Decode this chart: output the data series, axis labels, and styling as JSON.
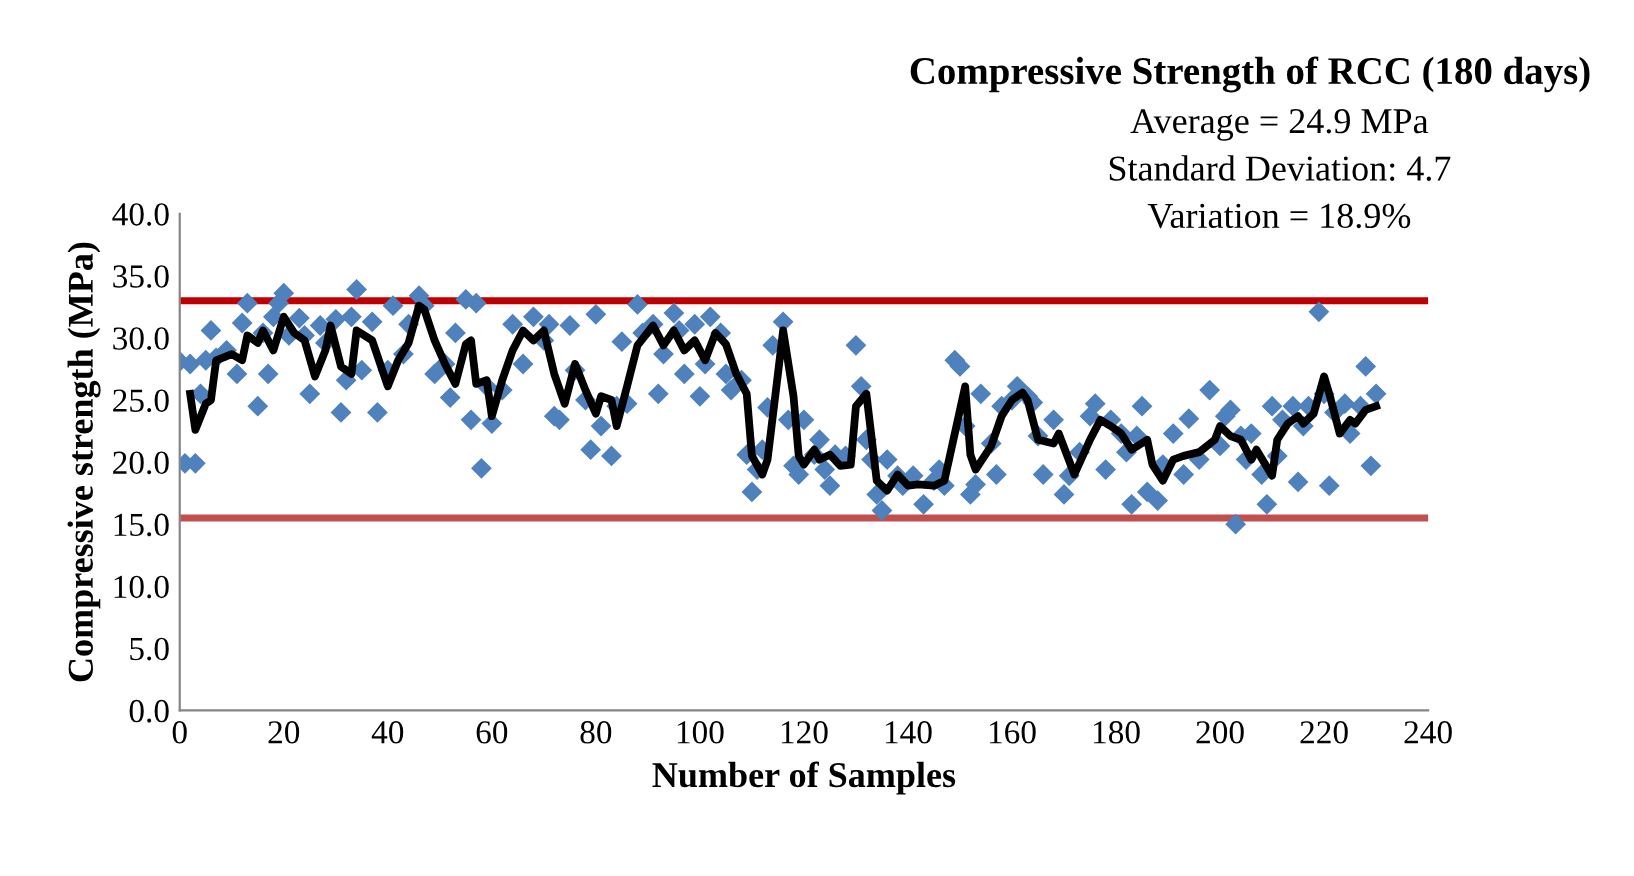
{
  "chart_data": {
    "type": "scatter",
    "title": "Compressive Strength of RCC (180 days)",
    "annotations": [
      "Average = 24.9 MPa",
      "Standard Deviation: 4.7",
      "Variation = 18.9%"
    ],
    "xlabel": "Number of Samples",
    "ylabel": "Compressive strength (MPa)",
    "xlim": [
      0,
      240
    ],
    "xticks": [
      0,
      20,
      40,
      60,
      80,
      100,
      120,
      140,
      160,
      180,
      200,
      220,
      240
    ],
    "ylim": [
      0,
      40
    ],
    "yticks": [
      {
        "value": 0,
        "label": "0.0"
      },
      {
        "value": 5,
        "label": "5.0"
      },
      {
        "value": 10,
        "label": "10.0"
      },
      {
        "value": 15,
        "label": "15.0"
      },
      {
        "value": 20,
        "label": "20.0"
      },
      {
        "value": 25,
        "label": "25.0"
      },
      {
        "value": 30,
        "label": "30.0"
      },
      {
        "value": 35,
        "label": "35.0"
      },
      {
        "value": 40,
        "label": "40.0"
      }
    ],
    "grid": false,
    "ref_lines": [
      {
        "axis": "y",
        "value": 33.0,
        "label": null,
        "color": "#c00000",
        "line_style": "solid"
      },
      {
        "axis": "y",
        "value": 15.5,
        "label": null,
        "color": "#c0504d",
        "line_style": "solid"
      }
    ],
    "series": [
      {
        "color": "#4f81bd",
        "marker": "diamond",
        "x": [
          0,
          1,
          2,
          3,
          4,
          5,
          6,
          7,
          9,
          11,
          12,
          13,
          15,
          16,
          17,
          18,
          19,
          20,
          21,
          23,
          24,
          25,
          27,
          28,
          30,
          31,
          32,
          33,
          34,
          35,
          37,
          38,
          40,
          41,
          43,
          44,
          46,
          47,
          49,
          51,
          52,
          53,
          55,
          56,
          57,
          58,
          59,
          60,
          62,
          64,
          66,
          68,
          70,
          71,
          72,
          73,
          75,
          76,
          78,
          79,
          80,
          81,
          83,
          84,
          85,
          86,
          88,
          89,
          91,
          92,
          93,
          95,
          96,
          97,
          99,
          100,
          101,
          102,
          104,
          105,
          106,
          108,
          109,
          110,
          111,
          112,
          113,
          114,
          116,
          117,
          118,
          119,
          120,
          122,
          123,
          124,
          125,
          126,
          128,
          130,
          131,
          132,
          133,
          134,
          135,
          136,
          138,
          139,
          141,
          143,
          145,
          146,
          147,
          149,
          150,
          151,
          152,
          153,
          154,
          156,
          157,
          158,
          160,
          161,
          163,
          164,
          165,
          166,
          168,
          170,
          171,
          173,
          175,
          176,
          178,
          179,
          181,
          182,
          183,
          184,
          185,
          186,
          188,
          189,
          191,
          193,
          194,
          196,
          198,
          200,
          201,
          202,
          203,
          204,
          205,
          206,
          208,
          209,
          210,
          211,
          212,
          214,
          215,
          216,
          217,
          219,
          220,
          221,
          222,
          224,
          225,
          227,
          228,
          229,
          230
        ],
        "values": [
          28.1,
          19.9,
          27.9,
          19.9,
          25.5,
          28.2,
          30.6,
          28.4,
          29.0,
          27.1,
          31.2,
          32.8,
          24.5,
          30.4,
          27.1,
          31.7,
          32.8,
          33.6,
          30.2,
          31.6,
          30.2,
          25.5,
          31.0,
          29.6,
          31.5,
          24.0,
          26.6,
          31.7,
          33.9,
          27.4,
          31.3,
          24.0,
          27.4,
          32.6,
          28.7,
          31.1,
          33.4,
          32.6,
          27.1,
          27.9,
          25.2,
          30.4,
          33.1,
          23.4,
          32.8,
          19.5,
          26.1,
          23.1,
          25.8,
          31.1,
          27.9,
          31.7,
          29.8,
          31.1,
          23.7,
          23.4,
          31.0,
          27.4,
          25.0,
          21.0,
          31.9,
          22.9,
          20.5,
          24.5,
          29.7,
          24.7,
          32.7,
          30.4,
          31.1,
          25.5,
          28.7,
          32.0,
          30.6,
          27.1,
          31.1,
          25.3,
          27.9,
          31.7,
          30.4,
          27.1,
          25.8,
          26.6,
          20.6,
          17.6,
          19.4,
          21.0,
          24.4,
          29.4,
          31.3,
          23.4,
          19.7,
          19.0,
          23.4,
          20.6,
          21.8,
          19.4,
          18.1,
          20.6,
          20.5,
          29.4,
          26.1,
          21.8,
          20.2,
          17.4,
          16.1,
          20.2,
          18.9,
          18.1,
          18.9,
          16.6,
          18.5,
          19.4,
          18.1,
          28.2,
          27.7,
          22.9,
          17.4,
          18.2,
          25.5,
          21.5,
          19.0,
          24.5,
          25.0,
          26.1,
          25.3,
          24.8,
          22.1,
          19.0,
          23.4,
          17.4,
          18.9,
          20.8,
          23.7,
          24.7,
          19.4,
          23.4,
          22.3,
          20.8,
          16.6,
          22.1,
          24.5,
          17.6,
          16.9,
          19.8,
          22.3,
          19.0,
          23.5,
          20.2,
          25.8,
          21.3,
          23.7,
          24.2,
          15.0,
          22.1,
          20.2,
          22.3,
          19.0,
          16.6,
          24.5,
          20.5,
          23.4,
          24.5,
          18.4,
          22.9,
          24.5,
          32.1,
          25.5,
          18.1,
          24.0,
          24.7,
          22.3,
          24.5,
          27.7,
          19.7,
          25.5
        ]
      },
      {
        "type": "line",
        "color": "#000000",
        "marker": "none",
        "line_style": "solid",
        "x": [
          2,
          3,
          5,
          6,
          7,
          10,
          12,
          13,
          15,
          16,
          18,
          20,
          22,
          24,
          26,
          28,
          29,
          31,
          33,
          34,
          37,
          40,
          42,
          44,
          46,
          47,
          49,
          51,
          53,
          55,
          56,
          57,
          59,
          60,
          62,
          64,
          66,
          68,
          70,
          72,
          74,
          76,
          78,
          80,
          81,
          83,
          84,
          86,
          88,
          91,
          93,
          95,
          97,
          99,
          101,
          103,
          105,
          107,
          109,
          110,
          112,
          113,
          115,
          116,
          118,
          119,
          120,
          122,
          123,
          125,
          127,
          129,
          130,
          132,
          134,
          136,
          138,
          140,
          142,
          145,
          147,
          151,
          152,
          153,
          156,
          158,
          160,
          162,
          163,
          165,
          168,
          169,
          172,
          175,
          177,
          179,
          181,
          183,
          186,
          187,
          189,
          191,
          193,
          196,
          199,
          200,
          202,
          204,
          206,
          207,
          210,
          211,
          213,
          215,
          216,
          218,
          220,
          221,
          223,
          225,
          226,
          228,
          230
        ],
        "values": [
          25.5,
          22.6,
          24.7,
          25.0,
          28.2,
          28.7,
          28.2,
          30.2,
          29.6,
          30.6,
          29.0,
          31.7,
          30.4,
          29.8,
          26.9,
          29.0,
          31.0,
          27.7,
          27.1,
          30.6,
          29.8,
          26.1,
          28.2,
          29.6,
          32.6,
          32.3,
          29.8,
          27.9,
          26.3,
          29.5,
          29.8,
          26.3,
          26.6,
          23.7,
          26.6,
          29.0,
          30.6,
          29.8,
          30.6,
          27.1,
          24.7,
          27.9,
          25.8,
          23.9,
          25.3,
          25.0,
          22.9,
          26.1,
          29.4,
          31.0,
          29.4,
          30.6,
          29.0,
          29.8,
          28.2,
          30.4,
          29.5,
          27.1,
          25.5,
          20.5,
          19.0,
          20.2,
          27.1,
          30.6,
          25.3,
          20.5,
          19.8,
          21.0,
          20.2,
          20.6,
          19.7,
          19.8,
          24.5,
          25.5,
          18.5,
          17.7,
          19.0,
          18.1,
          18.2,
          18.1,
          18.5,
          26.1,
          20.6,
          19.4,
          21.3,
          23.7,
          25.0,
          25.6,
          25.0,
          21.8,
          21.5,
          22.3,
          19.0,
          21.8,
          23.4,
          22.9,
          22.3,
          21.0,
          21.8,
          19.8,
          18.5,
          20.2,
          20.5,
          20.8,
          21.8,
          22.9,
          22.1,
          21.8,
          20.2,
          21.0,
          18.9,
          21.8,
          23.1,
          23.7,
          23.1,
          23.9,
          26.9,
          25.5,
          22.3,
          23.4,
          23.1,
          24.2,
          24.5
        ]
      }
    ]
  }
}
